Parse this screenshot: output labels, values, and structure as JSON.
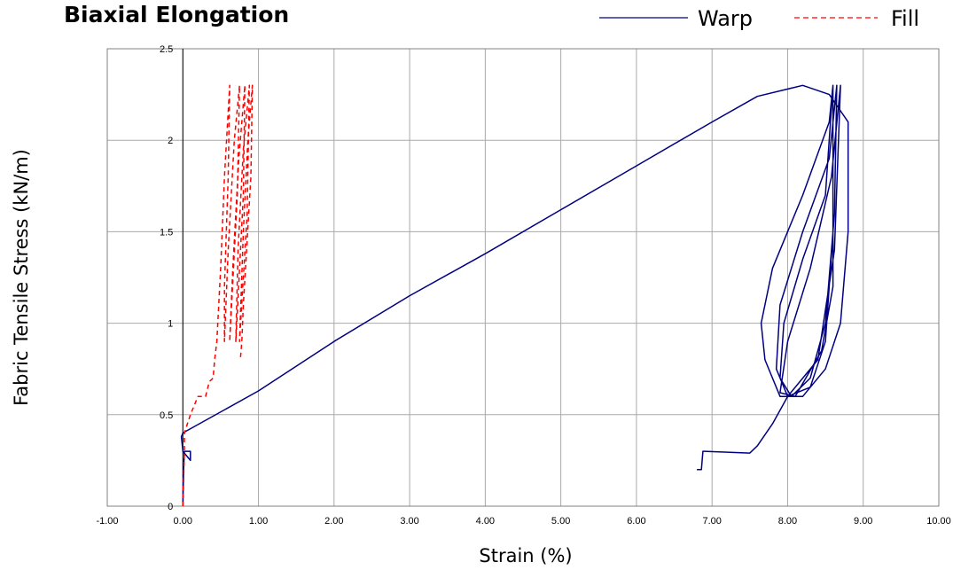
{
  "chart_data": {
    "type": "line",
    "title": "Biaxial Elongation",
    "xlabel": "Strain (%)",
    "ylabel": "Fabric Tensile Stress (kN/m)",
    "xlim": [
      -1.0,
      10.0
    ],
    "ylim": [
      0,
      2.5
    ],
    "x_ticks": [
      "-1.00",
      "0.00",
      "1.00",
      "2.00",
      "3.00",
      "4.00",
      "5.00",
      "6.00",
      "7.00",
      "8.00",
      "9.00",
      "10.00"
    ],
    "y_ticks": [
      "0",
      "0.5",
      "1",
      "1.5",
      "2",
      "2.5"
    ],
    "grid": true,
    "legend_position": "top-right",
    "series": [
      {
        "name": "Warp",
        "color": "#000080",
        "style": "solid",
        "points": [
          [
            0.0,
            0.0
          ],
          [
            0.01,
            0.2
          ],
          [
            0.02,
            0.3
          ],
          [
            0.1,
            0.3
          ],
          [
            0.1,
            0.25
          ],
          [
            0.0,
            0.3
          ],
          [
            -0.02,
            0.38
          ],
          [
            0.0,
            0.4
          ],
          [
            1.0,
            0.63
          ],
          [
            2.0,
            0.9
          ],
          [
            3.0,
            1.15
          ],
          [
            4.0,
            1.38
          ],
          [
            5.0,
            1.62
          ],
          [
            6.0,
            1.86
          ],
          [
            7.0,
            2.1
          ],
          [
            7.6,
            2.24
          ],
          [
            8.2,
            2.3
          ],
          [
            8.55,
            2.25
          ],
          [
            8.8,
            2.1
          ],
          [
            8.8,
            1.5
          ],
          [
            8.7,
            1.0
          ],
          [
            8.5,
            0.75
          ],
          [
            8.2,
            0.6
          ],
          [
            7.9,
            0.6
          ],
          [
            7.7,
            0.8
          ],
          [
            7.65,
            1.0
          ],
          [
            7.8,
            1.3
          ],
          [
            8.2,
            1.7
          ],
          [
            8.55,
            2.1
          ],
          [
            8.6,
            2.3
          ],
          [
            8.6,
            1.5
          ],
          [
            8.5,
            0.9
          ],
          [
            8.3,
            0.65
          ],
          [
            8.0,
            0.6
          ],
          [
            7.85,
            0.75
          ],
          [
            7.9,
            1.1
          ],
          [
            8.2,
            1.5
          ],
          [
            8.55,
            1.9
          ],
          [
            8.65,
            2.3
          ],
          [
            8.62,
            1.6
          ],
          [
            8.5,
            1.0
          ],
          [
            8.3,
            0.7
          ],
          [
            8.05,
            0.6
          ],
          [
            7.9,
            0.7
          ],
          [
            7.95,
            1.0
          ],
          [
            8.2,
            1.35
          ],
          [
            8.5,
            1.7
          ],
          [
            8.6,
            2.3
          ],
          [
            8.6,
            1.2
          ],
          [
            8.45,
            0.85
          ],
          [
            8.1,
            0.6
          ],
          [
            7.9,
            0.62
          ],
          [
            8.0,
            0.9
          ],
          [
            8.3,
            1.3
          ],
          [
            8.58,
            1.8
          ],
          [
            8.7,
            2.3
          ],
          [
            8.62,
            1.4
          ],
          [
            8.4,
            0.8
          ],
          [
            8.0,
            0.6
          ],
          [
            7.8,
            0.45
          ],
          [
            7.6,
            0.33
          ],
          [
            7.5,
            0.29
          ],
          [
            6.9,
            0.3
          ],
          [
            6.88,
            0.3
          ],
          [
            6.86,
            0.2
          ],
          [
            6.8,
            0.2
          ]
        ]
      },
      {
        "name": "Fill",
        "color": "#ff0000",
        "style": "dashed",
        "points": [
          [
            0.0,
            0.0
          ],
          [
            0.02,
            0.3
          ],
          [
            0.02,
            0.4
          ],
          [
            0.1,
            0.5
          ],
          [
            0.2,
            0.6
          ],
          [
            0.3,
            0.6
          ],
          [
            0.35,
            0.68
          ],
          [
            0.4,
            0.7
          ],
          [
            0.42,
            0.8
          ],
          [
            0.45,
            0.9
          ],
          [
            0.5,
            1.3
          ],
          [
            0.55,
            1.8
          ],
          [
            0.62,
            2.3
          ],
          [
            0.6,
            1.8
          ],
          [
            0.55,
            1.2
          ],
          [
            0.55,
            0.9
          ],
          [
            0.6,
            1.4
          ],
          [
            0.68,
            2.0
          ],
          [
            0.75,
            2.3
          ],
          [
            0.72,
            1.7
          ],
          [
            0.62,
            0.9
          ],
          [
            0.66,
            1.3
          ],
          [
            0.74,
            1.9
          ],
          [
            0.82,
            2.3
          ],
          [
            0.8,
            1.7
          ],
          [
            0.7,
            0.9
          ],
          [
            0.73,
            1.4
          ],
          [
            0.8,
            1.95
          ],
          [
            0.88,
            2.3
          ],
          [
            0.85,
            1.6
          ],
          [
            0.75,
            0.9
          ],
          [
            0.8,
            1.5
          ],
          [
            0.86,
            2.0
          ],
          [
            0.92,
            2.3
          ],
          [
            0.9,
            1.8
          ],
          [
            0.8,
            1.1
          ],
          [
            0.78,
            0.9
          ],
          [
            0.76,
            0.8
          ]
        ]
      }
    ]
  }
}
